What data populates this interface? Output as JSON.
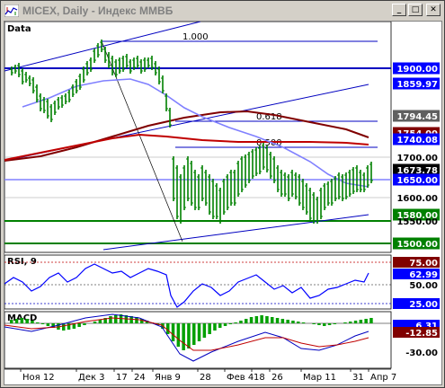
{
  "window": {
    "title": "MICEX, Daily - Индекс ММВБ",
    "minimize_glyph": "_",
    "maximize_glyph": "□",
    "close_glyph": "✕"
  },
  "colors": {
    "price_bar": "#008000",
    "ma_short": "#8080ff",
    "ma_mid": "#c00000",
    "ma_long": "#800000",
    "trend_line": "#0000c0",
    "support": "#008000",
    "label_bg": "#0000ff",
    "rsi_line": "#0000ff",
    "macd_hist": "#00a000"
  },
  "price_panel": {
    "label": "Data",
    "fib_levels": [
      {
        "label": "1.000"
      },
      {
        "label": "0.618"
      },
      {
        "label": "0.500"
      }
    ],
    "price_labels": [
      {
        "text": "1900.00",
        "style": "blue"
      },
      {
        "text": "1859.97",
        "style": "blue"
      },
      {
        "text": "1794.45",
        "style": "gray"
      },
      {
        "text": "1754.00",
        "style": "red"
      },
      {
        "text": "1740.08",
        "style": "blue"
      },
      {
        "text": "1700.00",
        "style": "plain"
      },
      {
        "text": "1673.78",
        "style": "black"
      },
      {
        "text": "1650.00",
        "style": "blue"
      },
      {
        "text": "1600.00",
        "style": "plain"
      },
      {
        "text": "1580.00",
        "style": "green"
      },
      {
        "text": "1550.00",
        "style": "plain"
      },
      {
        "text": "1500.00",
        "style": "green"
      }
    ]
  },
  "rsi_panel": {
    "label": "RSI, 9",
    "labels": [
      {
        "text": "75.00",
        "style": "red"
      },
      {
        "text": "62.99",
        "style": "blue"
      },
      {
        "text": "50.00",
        "style": "plain"
      },
      {
        "text": "25.00",
        "style": "blue"
      }
    ]
  },
  "macd_panel": {
    "label": "MACD",
    "labels": [
      {
        "text": "6.31",
        "style": "blue"
      },
      {
        "text": "-12.85",
        "style": "red"
      },
      {
        "text": "-30.00",
        "style": "plain"
      }
    ]
  },
  "x_axis": {
    "labels": [
      "Ноя 12",
      "Дек 3",
      "17",
      "24",
      "Янв 9",
      "28",
      "Фев 4",
      "18",
      "26",
      "Мар 11",
      "31",
      "Апр 7"
    ]
  }
}
